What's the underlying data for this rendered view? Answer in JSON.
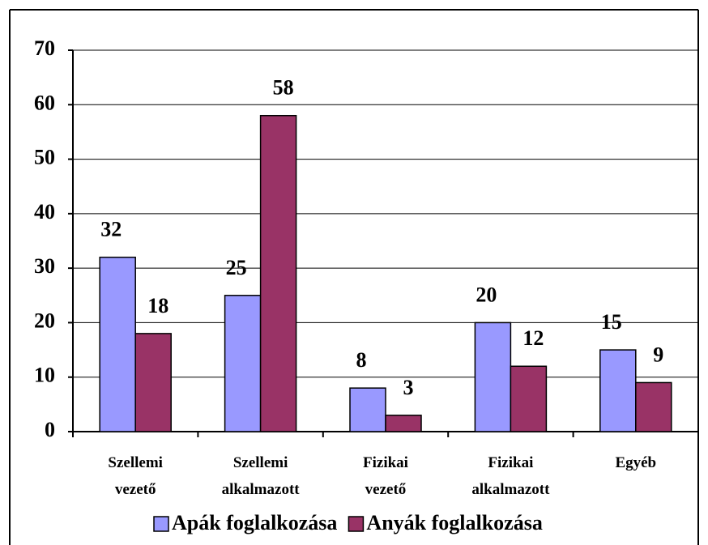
{
  "chart_data": {
    "type": "bar",
    "categories": [
      "Szellemi vezető",
      "Szellemi alkalmazott",
      "Fizikai vezető",
      "Fizikai alkalmazott",
      "Egyéb"
    ],
    "series": [
      {
        "name": "Apák foglalkozása",
        "color": "#9999ff",
        "values": [
          32,
          25,
          8,
          20,
          15
        ]
      },
      {
        "name": "Anyák foglalkozása",
        "color": "#993366",
        "values": [
          18,
          58,
          3,
          12,
          9
        ]
      }
    ],
    "ylim": [
      0,
      70
    ],
    "yticks": [
      0,
      10,
      20,
      30,
      40,
      50,
      60,
      70
    ],
    "grid": true,
    "legend": "bottom"
  }
}
